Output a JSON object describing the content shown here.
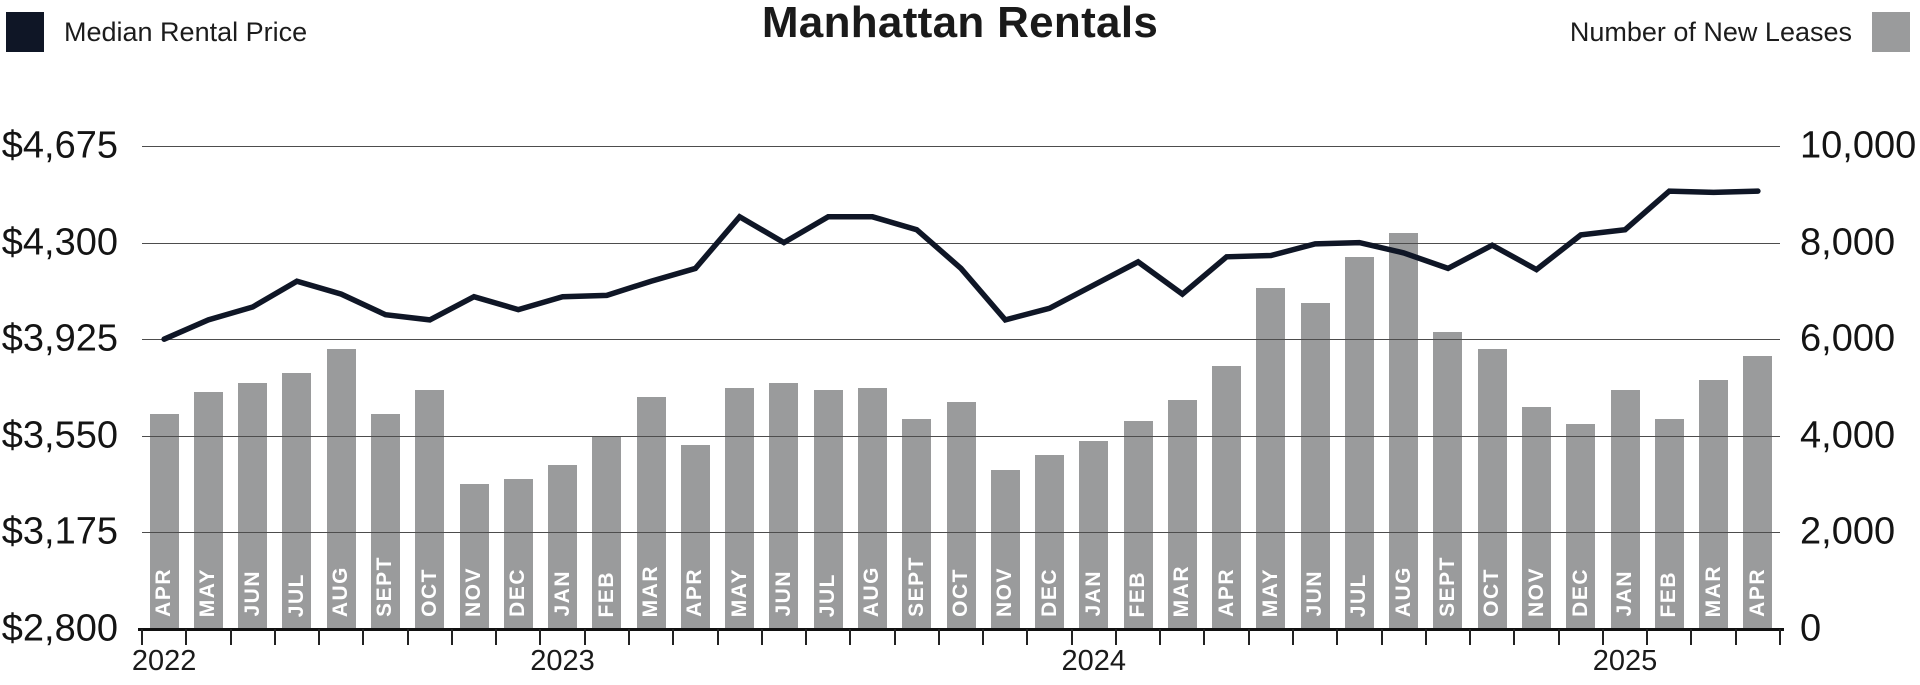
{
  "header": {
    "title": "Manhattan Rentals",
    "legend_left": {
      "label": "Median Rental Price",
      "color": "#0f1626"
    },
    "legend_right": {
      "label": "Number of New Leases",
      "color": "#9a9b9c"
    }
  },
  "chart_data": {
    "type": "bar+line",
    "title": "Manhattan Rentals",
    "grid": true,
    "categories": [
      "APR",
      "MAY",
      "JUN",
      "JUL",
      "AUG",
      "SEPT",
      "OCT",
      "NOV",
      "DEC",
      "JAN",
      "FEB",
      "MAR",
      "APR",
      "MAY",
      "JUN",
      "JUL",
      "AUG",
      "SEPT",
      "OCT",
      "NOV",
      "DEC",
      "JAN",
      "FEB",
      "MAR",
      "APR",
      "MAY",
      "JUN",
      "JUL",
      "AUG",
      "SEPT",
      "OCT",
      "NOV",
      "DEC",
      "JAN",
      "FEB",
      "MAR",
      "APR"
    ],
    "years": [
      {
        "label": "2022",
        "start_index": 0
      },
      {
        "label": "2023",
        "start_index": 9
      },
      {
        "label": "2024",
        "start_index": 21
      },
      {
        "label": "2025",
        "start_index": 33
      }
    ],
    "series": [
      {
        "name": "Median Rental Price",
        "type": "line",
        "axis": "left",
        "color": "#0f1626",
        "values": [
          3925,
          4000,
          4050,
          4150,
          4100,
          4020,
          4000,
          4090,
          4040,
          4090,
          4095,
          4150,
          4200,
          4400,
          4300,
          4400,
          4400,
          4350,
          4200,
          4000,
          4045,
          4135,
          4225,
          4100,
          4245,
          4250,
          4295,
          4300,
          4260,
          4200,
          4290,
          4195,
          4330,
          4350,
          4500,
          4495,
          4500
        ]
      },
      {
        "name": "Number of New Leases",
        "type": "bar",
        "axis": "right",
        "color": "#9a9b9c",
        "values": [
          4450,
          4900,
          5100,
          5300,
          5800,
          4450,
          4950,
          3000,
          3100,
          3400,
          4000,
          4800,
          3800,
          5000,
          5100,
          4950,
          5000,
          4350,
          4700,
          3300,
          3600,
          3900,
          4300,
          4750,
          5450,
          7050,
          6750,
          7700,
          8200,
          6150,
          5800,
          4600,
          4250,
          4950,
          4350,
          5150,
          5650
        ]
      }
    ],
    "left_axis": {
      "tick_labels": [
        "$4,675",
        "$4,300",
        "$3,925",
        "$3,550",
        "$3,175",
        "$2,800"
      ],
      "tick_values": [
        4675,
        4300,
        3925,
        3550,
        3175,
        2800
      ],
      "min": 2800,
      "max": 4675,
      "units_per_gridline": 375
    },
    "right_axis": {
      "tick_labels": [
        "10,000",
        "8,000",
        "6,000",
        "4,000",
        "2,000",
        "0"
      ],
      "tick_values": [
        10000,
        8000,
        6000,
        4000,
        2000,
        0
      ],
      "min": 0,
      "max": 10000,
      "units_per_gridline": 2000
    }
  }
}
